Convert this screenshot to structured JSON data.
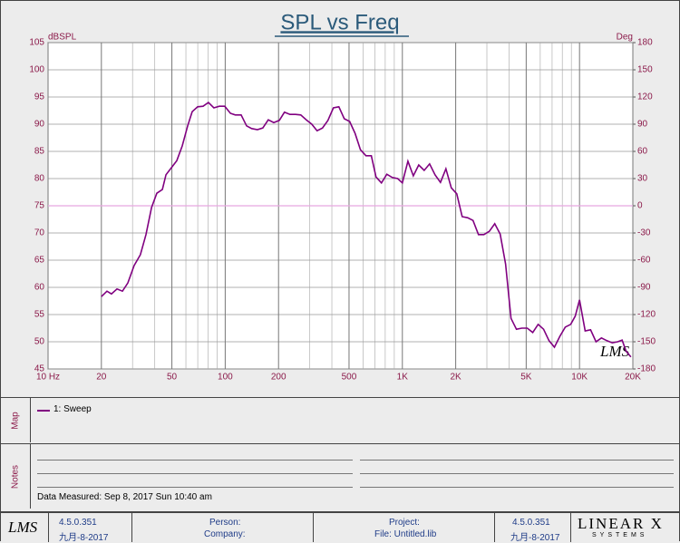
{
  "chart_data": {
    "type": "line",
    "title": "SPL vs Freq",
    "ylabel": "dBSPL",
    "y2label": "Deg",
    "xscale": "log",
    "xlim": [
      10,
      20000
    ],
    "ylim": [
      45,
      105
    ],
    "y2lim": [
      -180,
      180
    ],
    "yticks": [
      45,
      50,
      55,
      60,
      65,
      70,
      75,
      80,
      85,
      90,
      95,
      100,
      105
    ],
    "y2ticks": [
      -180,
      -150,
      -120,
      -90,
      -60,
      -30,
      0,
      30,
      60,
      90,
      120,
      150,
      180
    ],
    "xticks": [
      {
        "value": 10,
        "label": "10 Hz"
      },
      20,
      50,
      100,
      200,
      500,
      {
        "value": 1000,
        "label": "1K"
      },
      {
        "value": 2000,
        "label": "2K"
      },
      {
        "value": 5000,
        "label": "5K"
      },
      {
        "value": 10000,
        "label": "10K"
      },
      {
        "value": 20000,
        "label": "20K"
      }
    ],
    "xticks_minor": [
      30,
      40,
      60,
      70,
      80,
      90,
      300,
      400,
      600,
      700,
      800,
      900,
      3000,
      4000,
      6000,
      7000,
      8000,
      9000
    ],
    "grid": true,
    "watermark": "LMS",
    "reference_line": {
      "value": 75,
      "color": "#e8a8e0"
    },
    "x": [
      20,
      21.5,
      22.8,
      24.5,
      26.3,
      28.2,
      30.6,
      33.2,
      35.7,
      38.4,
      41.1,
      44.2,
      46.3,
      49.7,
      53.3,
      57.2,
      61.4,
      65.1,
      69.9,
      75,
      80.4,
      86.3,
      92.6,
      99.4,
      107,
      114,
      123,
      132,
      141,
      152,
      163,
      175,
      188,
      202,
      216,
      232,
      249,
      267,
      287,
      308,
      330,
      354,
      380,
      408,
      438,
      470,
      504,
      541,
      580,
      623,
      668,
      710,
      762,
      817,
      877,
      941,
      1000,
      1075,
      1153,
      1237,
      1328,
      1425,
      1529,
      1641,
      1761,
      1889,
      2028,
      2176,
      2335,
      2505,
      2689,
      2885,
      3096,
      3322,
      3565,
      3825,
      4105,
      4405,
      4727,
      5072,
      5443,
      5841,
      6268,
      6726,
      7217,
      7745,
      8311,
      8918,
      9455,
      10000,
      10760,
      11546,
      12390,
      13295,
      14267,
      15310,
      16428,
      17400,
      18300,
      19500
    ],
    "series": [
      {
        "name": "1: Sweep",
        "color": "#800080",
        "values": [
          58.3,
          59.3,
          58.8,
          59.7,
          59.3,
          60.8,
          64,
          66,
          69.7,
          74.7,
          77.3,
          78,
          80.7,
          82,
          83.3,
          86,
          89.7,
          92.3,
          93.2,
          93.3,
          94,
          93,
          93.3,
          93.3,
          92,
          91.7,
          91.7,
          89.7,
          89.2,
          89,
          89.3,
          90.8,
          90.3,
          90.7,
          92.2,
          91.8,
          91.8,
          91.7,
          90.8,
          90,
          88.8,
          89.3,
          90.7,
          93,
          93.2,
          91,
          90.5,
          88.3,
          85.3,
          84.2,
          84.2,
          80.3,
          79.2,
          80.8,
          80.2,
          80,
          79.2,
          83.2,
          80.5,
          82.5,
          81.5,
          82.7,
          80.7,
          79.3,
          81.8,
          78.3,
          77.2,
          73,
          72.8,
          72.3,
          69.7,
          69.7,
          70.3,
          71.7,
          69.8,
          64.3,
          54.3,
          52.3,
          52.5,
          52.5,
          51.7,
          53.2,
          52.3,
          50.2,
          49,
          51,
          52.7,
          53.2,
          54.7,
          57.7,
          52,
          52.2,
          50,
          50.7,
          50.2,
          49.8,
          50,
          50.3,
          48.3,
          47.2
        ]
      }
    ]
  },
  "map_panel": {
    "label": "Map"
  },
  "notes_panel": {
    "label": "Notes",
    "data_measured": "Data Measured: Sep 8, 2017 Sun 10:40 am"
  },
  "footer": {
    "logo": "LMS",
    "version_left": "4.5.0.351",
    "date_left": "九月-8-2017",
    "person": "Person:",
    "company": "Company:",
    "project": "Project:",
    "file": "File: Untitled.lib",
    "version_right": "4.5.0.351",
    "date_right": "九月-8-2017",
    "brand": "LINEAR X",
    "brand_sub": "SYSTEMS"
  }
}
